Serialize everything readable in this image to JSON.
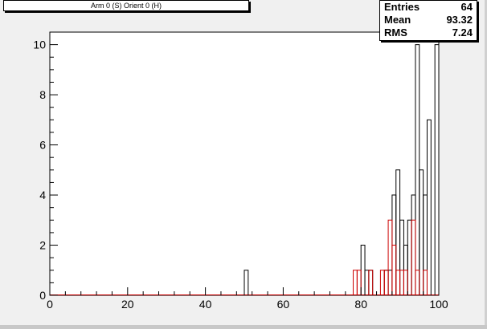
{
  "title": "Arm 0 (S) Orient 0 (H)",
  "stats": [
    {
      "key": "Entries",
      "value": "64"
    },
    {
      "key": "Mean",
      "value": "93.32"
    },
    {
      "key": "RMS",
      "value": "7.24"
    }
  ],
  "chart_data": {
    "type": "histogram",
    "xlim": [
      0,
      100
    ],
    "ylim": [
      0,
      10.5
    ],
    "bin_width": 1,
    "x_ticks": [
      0,
      20,
      40,
      60,
      80,
      100
    ],
    "y_ticks": [
      0,
      2,
      4,
      6,
      8,
      10
    ],
    "colors": {
      "series_1": "#000000",
      "series_2": "#cc0000"
    },
    "series": [
      {
        "bins": [
          {
            "x0": 50,
            "x1": 51,
            "y": 1
          },
          {
            "x0": 80,
            "x1": 81,
            "y": 2
          },
          {
            "x0": 81,
            "x1": 82,
            "y": 1
          },
          {
            "x0": 82,
            "x1": 83,
            "y": 1
          },
          {
            "x0": 86,
            "x1": 87,
            "y": 1
          },
          {
            "x0": 87,
            "x1": 88,
            "y": 1
          },
          {
            "x0": 88,
            "x1": 89,
            "y": 4
          },
          {
            "x0": 89,
            "x1": 90,
            "y": 5
          },
          {
            "x0": 90,
            "x1": 91,
            "y": 3
          },
          {
            "x0": 91,
            "x1": 92,
            "y": 2
          },
          {
            "x0": 92,
            "x1": 93,
            "y": 3
          },
          {
            "x0": 93,
            "x1": 94,
            "y": 4
          },
          {
            "x0": 94,
            "x1": 95,
            "y": 10
          },
          {
            "x0": 95,
            "x1": 96,
            "y": 5
          },
          {
            "x0": 96,
            "x1": 97,
            "y": 4
          },
          {
            "x0": 97,
            "x1": 98,
            "y": 7
          },
          {
            "x0": 99,
            "x1": 100,
            "y": 10
          }
        ]
      },
      {
        "bins": [
          {
            "x0": 78,
            "x1": 79,
            "y": 1
          },
          {
            "x0": 79,
            "x1": 80,
            "y": 1
          },
          {
            "x0": 82,
            "x1": 83,
            "y": 1
          },
          {
            "x0": 85,
            "x1": 86,
            "y": 1
          },
          {
            "x0": 86,
            "x1": 87,
            "y": 1
          },
          {
            "x0": 87,
            "x1": 88,
            "y": 3
          },
          {
            "x0": 88,
            "x1": 89,
            "y": 2
          },
          {
            "x0": 89,
            "x1": 90,
            "y": 1
          },
          {
            "x0": 90,
            "x1": 91,
            "y": 1
          },
          {
            "x0": 91,
            "x1": 92,
            "y": 1
          },
          {
            "x0": 93,
            "x1": 94,
            "y": 3
          },
          {
            "x0": 94,
            "x1": 95,
            "y": 1
          },
          {
            "x0": 96,
            "x1": 97,
            "y": 1
          }
        ]
      }
    ]
  }
}
